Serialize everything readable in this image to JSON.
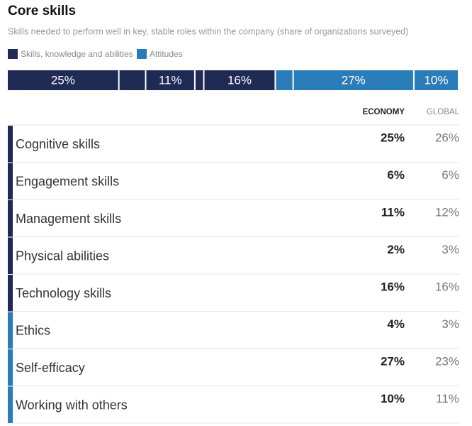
{
  "title": "Core skills",
  "subtitle": "Skills needed to perform well in key, stable roles within the company (share of organizations surveyed)",
  "legend": [
    {
      "name": "Skills, knowledge and abilities",
      "color": "#1f2a55"
    },
    {
      "name": "Attitudes",
      "color": "#2a7db9"
    }
  ],
  "table": {
    "columns": [
      "ECONOMY",
      "GLOBAL"
    ],
    "rows": [
      {
        "label": "Cognitive skills",
        "group": 0,
        "economy": 25,
        "economy_label": "25%",
        "global": 26,
        "global_label": "26%"
      },
      {
        "label": "Engagement skills",
        "group": 0,
        "economy": 6,
        "economy_label": "6%",
        "global": 6,
        "global_label": "6%"
      },
      {
        "label": "Management skills",
        "group": 0,
        "economy": 11,
        "economy_label": "11%",
        "global": 12,
        "global_label": "12%"
      },
      {
        "label": "Physical abilities",
        "group": 0,
        "economy": 2,
        "economy_label": "2%",
        "global": 3,
        "global_label": "3%"
      },
      {
        "label": "Technology skills",
        "group": 0,
        "economy": 16,
        "economy_label": "16%",
        "global": 16,
        "global_label": "16%"
      },
      {
        "label": "Ethics",
        "group": 1,
        "economy": 4,
        "economy_label": "4%",
        "global": 3,
        "global_label": "3%"
      },
      {
        "label": "Self-efficacy",
        "group": 1,
        "economy": 27,
        "economy_label": "27%",
        "global": 23,
        "global_label": "23%"
      },
      {
        "label": "Working with others",
        "group": 1,
        "economy": 10,
        "economy_label": "10%",
        "global": 11,
        "global_label": "11%"
      }
    ]
  }
}
